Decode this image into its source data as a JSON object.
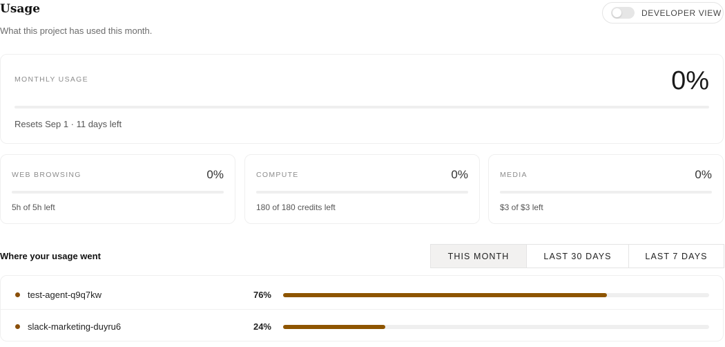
{
  "header": {
    "title": "Usage",
    "subtitle": "What this project has used this month."
  },
  "developer_view": {
    "label": "DEVELOPER VIEW",
    "enabled": false
  },
  "monthly": {
    "caption": "MONTHLY USAGE",
    "percent_label": "0%",
    "percent": 0,
    "note": "Resets Sep 1 · 11 days left"
  },
  "categories": [
    {
      "caption": "WEB BROWSING",
      "percent_label": "0%",
      "percent": 0,
      "note": "5h of 5h left"
    },
    {
      "caption": "COMPUTE",
      "percent_label": "0%",
      "percent": 0,
      "note": "180 of 180 credits left"
    },
    {
      "caption": "MEDIA",
      "percent_label": "0%",
      "percent": 0,
      "note": "$3 of $3 left"
    }
  ],
  "breakdown": {
    "title": "Where your usage went",
    "tabs": [
      {
        "label": "THIS MONTH",
        "active": true
      },
      {
        "label": "LAST 30 DAYS",
        "active": false
      },
      {
        "label": "LAST 7 DAYS",
        "active": false
      }
    ],
    "items": [
      {
        "name": "test-agent-q9q7kw",
        "percent_label": "76%",
        "percent": 76
      },
      {
        "name": "slack-marketing-duyru6",
        "percent_label": "24%",
        "percent": 24
      }
    ]
  },
  "colors": {
    "accent": "#8e5500",
    "dot": "#8a4f0a",
    "track": "#efefef"
  }
}
